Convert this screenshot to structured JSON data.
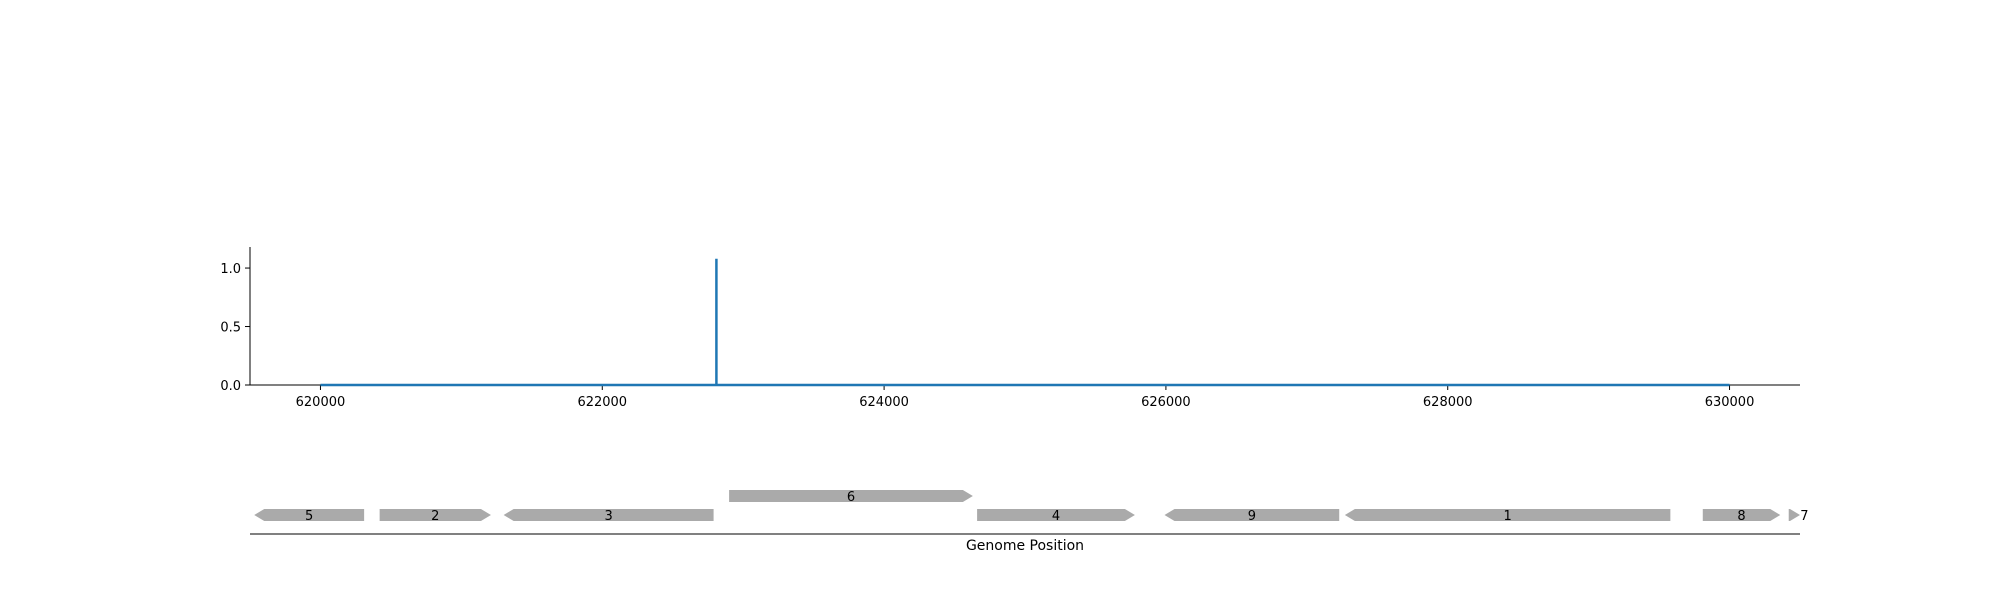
{
  "chart_data": {
    "type": "line",
    "title": "",
    "xlabel": "Genome Position",
    "ylabel": "",
    "xlim": [
      619500,
      630500
    ],
    "ylim": [
      0,
      1.18
    ],
    "grid": false,
    "x_ticks": [
      {
        "value": 620000,
        "label": "620000"
      },
      {
        "value": 622000,
        "label": "622000"
      },
      {
        "value": 624000,
        "label": "624000"
      },
      {
        "value": 626000,
        "label": "626000"
      },
      {
        "value": 628000,
        "label": "628000"
      },
      {
        "value": 630000,
        "label": "630000"
      }
    ],
    "y_ticks": [
      {
        "value": 0.0,
        "label": "0.0"
      },
      {
        "value": 0.5,
        "label": "0.5"
      },
      {
        "value": 1.0,
        "label": "1.0"
      }
    ],
    "series": [
      {
        "color": "#1f77b4",
        "x": [
          620000,
          622810,
          622810,
          622810,
          630000
        ],
        "y": [
          0,
          0,
          1.08,
          0,
          0
        ]
      }
    ],
    "genes": [
      {
        "label": "5",
        "start": 619530,
        "end": 620310,
        "strand": "-",
        "row": 0
      },
      {
        "label": "2",
        "start": 620420,
        "end": 621210,
        "strand": "+",
        "row": 0
      },
      {
        "label": "3",
        "start": 621300,
        "end": 622790,
        "strand": "-",
        "row": 0
      },
      {
        "label": "6",
        "start": 622900,
        "end": 624630,
        "strand": "+",
        "row": 1
      },
      {
        "label": "4",
        "start": 624660,
        "end": 625780,
        "strand": "+",
        "row": 0
      },
      {
        "label": "9",
        "start": 625990,
        "end": 627230,
        "strand": "-",
        "row": 0
      },
      {
        "label": "1",
        "start": 627270,
        "end": 629580,
        "strand": "-",
        "row": 0
      },
      {
        "label": "8",
        "start": 629810,
        "end": 630360,
        "strand": "+",
        "row": 0
      },
      {
        "label": "7",
        "start": 630420,
        "end": 630500,
        "strand": "+",
        "row": 0
      }
    ],
    "gene_color": "#aaaaaa"
  }
}
